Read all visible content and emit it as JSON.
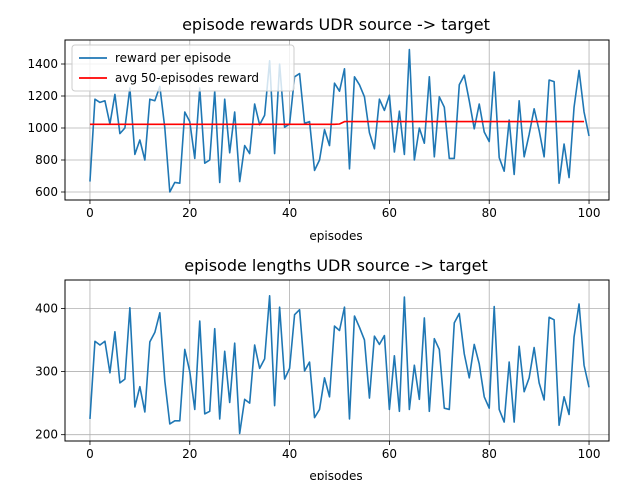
{
  "chart_data": [
    {
      "type": "line",
      "title": "episode rewards UDR source -> target",
      "xlabel": "episodes",
      "ylabel": "",
      "xlim": [
        -5,
        104
      ],
      "ylim": [
        550,
        1550
      ],
      "xticks": [
        0,
        20,
        40,
        60,
        80,
        100
      ],
      "yticks": [
        600,
        800,
        1000,
        1200,
        1400
      ],
      "grid": true,
      "legend": "top-left",
      "series": [
        {
          "name": "reward per episode",
          "color": "#1f77b4",
          "values": [
            665,
            1180,
            1160,
            1170,
            1025,
            1210,
            965,
            1000,
            1250,
            835,
            925,
            800,
            1180,
            1170,
            1260,
            1000,
            600,
            660,
            655,
            1100,
            1040,
            810,
            1250,
            780,
            800,
            1230,
            660,
            1180,
            845,
            1100,
            665,
            890,
            840,
            1150,
            1020,
            1080,
            1420,
            840,
            1400,
            1005,
            1025,
            1320,
            1340,
            1030,
            1040,
            735,
            800,
            990,
            890,
            1280,
            1230,
            1370,
            745,
            1320,
            1270,
            1195,
            970,
            870,
            1180,
            1110,
            1205,
            850,
            1105,
            835,
            1490,
            800,
            1000,
            905,
            1320,
            820,
            1195,
            1130,
            810,
            810,
            1270,
            1330,
            1170,
            995,
            1150,
            975,
            915,
            1350,
            815,
            730,
            1050,
            710,
            1170,
            820,
            960,
            1120,
            985,
            820,
            1300,
            1290,
            655,
            900,
            690,
            1130,
            1360,
            1100,
            950
          ]
        },
        {
          "name": "avg 50-episodes reward",
          "color": "#ff0000",
          "values": [
            1023,
            1023,
            1023,
            1023,
            1023,
            1023,
            1023,
            1023,
            1023,
            1023,
            1023,
            1023,
            1023,
            1023,
            1023,
            1023,
            1023,
            1023,
            1023,
            1023,
            1023,
            1023,
            1023,
            1023,
            1023,
            1023,
            1023,
            1023,
            1023,
            1023,
            1023,
            1023,
            1023,
            1023,
            1023,
            1023,
            1023,
            1023,
            1023,
            1023,
            1023,
            1023,
            1023,
            1023,
            1023,
            1023,
            1023,
            1023,
            1023,
            1023,
            1025,
            1040,
            1040,
            1040,
            1040,
            1040,
            1040,
            1040,
            1040,
            1040,
            1040,
            1040,
            1040,
            1040,
            1040,
            1040,
            1040,
            1040,
            1040,
            1040,
            1040,
            1040,
            1040,
            1040,
            1040,
            1040,
            1040,
            1040,
            1040,
            1040,
            1040,
            1040,
            1040,
            1040,
            1040,
            1040,
            1040,
            1040,
            1040,
            1040,
            1040,
            1040,
            1040,
            1040,
            1040,
            1040,
            1040,
            1040,
            1040,
            1040
          ]
        }
      ]
    },
    {
      "type": "line",
      "title": "episode lengths UDR source -> target",
      "xlabel": "episodes",
      "ylabel": "",
      "xlim": [
        -5,
        104
      ],
      "ylim": [
        190,
        445
      ],
      "xticks": [
        0,
        20,
        40,
        60,
        80,
        100
      ],
      "yticks": [
        200,
        300,
        400
      ],
      "grid": true,
      "legend": "none",
      "series": [
        {
          "name": "",
          "color": "#1f77b4",
          "values": [
            225,
            348,
            342,
            348,
            298,
            363,
            282,
            288,
            401,
            244,
            276,
            236,
            347,
            362,
            393,
            285,
            217,
            222,
            222,
            335,
            300,
            240,
            380,
            233,
            237,
            368,
            225,
            332,
            251,
            345,
            202,
            256,
            250,
            342,
            305,
            320,
            420,
            246,
            402,
            288,
            305,
            390,
            398,
            301,
            315,
            227,
            240,
            290,
            260,
            372,
            365,
            402,
            225,
            388,
            370,
            350,
            258,
            356,
            343,
            357,
            240,
            325,
            237,
            418,
            240,
            310,
            256,
            385,
            237,
            352,
            335,
            242,
            240,
            377,
            392,
            328,
            290,
            343,
            312,
            260,
            242,
            403,
            240,
            220,
            315,
            220,
            340,
            268,
            290,
            338,
            282,
            255,
            386,
            382,
            215,
            260,
            232,
            355,
            407,
            310,
            275
          ]
        }
      ]
    }
  ]
}
